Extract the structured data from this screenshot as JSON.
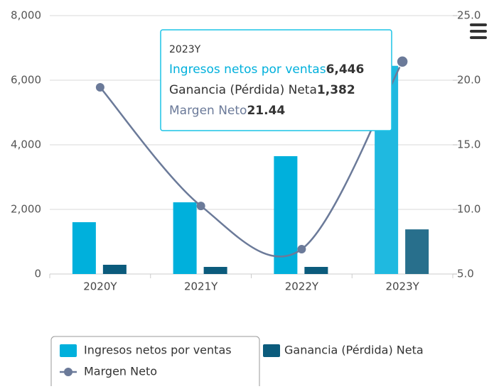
{
  "chart_data": {
    "type": "bar-line",
    "categories": [
      "2020Y",
      "2021Y",
      "2022Y",
      "2023Y"
    ],
    "series": [
      {
        "name": "Ingresos netos por ventas",
        "type": "bar",
        "color": "#00b0dc",
        "values": [
          1604,
          2220,
          3648,
          6446
        ],
        "value_labels": [
          null,
          null,
          null,
          "6,446"
        ]
      },
      {
        "name": "Ganancia (Pérdida) Neta",
        "type": "bar",
        "color": "#0b5b7c",
        "values": [
          286,
          220,
          220,
          1382
        ],
        "value_labels": [
          null,
          null,
          null,
          "1,382"
        ]
      },
      {
        "name": "Margen Neto",
        "type": "line",
        "axis": "y2",
        "color": "#6b7a99",
        "values": [
          19.45,
          10.27,
          6.92,
          21.44
        ],
        "value_labels": [
          null,
          null,
          null,
          "21.44"
        ]
      }
    ],
    "ylim": [
      0,
      8000
    ],
    "yticks": [
      0,
      {
        "value": 2000,
        "label": "2,000"
      },
      {
        "value": 4000,
        "label": "4,000"
      },
      {
        "value": 6000,
        "label": "6,000"
      },
      {
        "value": 8000,
        "label": "8,000"
      }
    ],
    "y2lim": [
      5,
      25
    ],
    "y2ticks": [
      {
        "value": 5,
        "label": "5.0"
      },
      {
        "value": 10,
        "label": "10.0"
      },
      {
        "value": 15,
        "label": "15.0"
      },
      {
        "value": 20,
        "label": "20.0"
      },
      {
        "value": 25,
        "label": "25.0"
      }
    ],
    "grid": true,
    "legend": "bottom-left"
  }
}
